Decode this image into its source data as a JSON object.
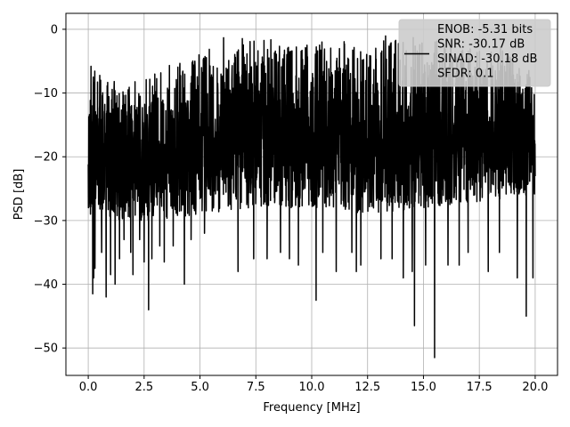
{
  "chart_data": {
    "type": "line",
    "title": "",
    "xlabel": "Frequency [MHz]",
    "ylabel": "PSD [dB]",
    "xlim": [
      -1.0,
      21.0
    ],
    "ylim": [
      -54.3,
      2.5
    ],
    "xticks": [
      0.0,
      2.5,
      5.0,
      7.5,
      10.0,
      12.5,
      15.0,
      17.5,
      20.0
    ],
    "xtick_labels": [
      "0.0",
      "2.5",
      "5.0",
      "7.5",
      "10.0",
      "12.5",
      "15.0",
      "17.5",
      "20.0"
    ],
    "yticks": [
      0,
      -10,
      -20,
      -30,
      -40,
      -50
    ],
    "ytick_labels": [
      "0",
      "−10",
      "−20",
      "−30",
      "−40",
      "−50"
    ],
    "grid": true,
    "legend_placement": "top-right",
    "series": [
      {
        "name": "ENOB: -5.31 bits\nSNR: -30.17 dB\nSINAD: -30.18 dB\nSFDR: 0.1",
        "color": "#000000",
        "description": "Noise-like PSD trace densely filling roughly -28 to -3 dB across 0 to 20 MHz, upper edge near -5 dB, with sharp downward spikes",
        "x_range": [
          0.0,
          20.0
        ],
        "envelope_upper": [
          [
            0.0,
            -10
          ],
          [
            0.1,
            -5
          ],
          [
            1.0,
            -8
          ],
          [
            2.5,
            -7
          ],
          [
            4.0,
            -5
          ],
          [
            5.5,
            -1
          ],
          [
            6.5,
            -1.5
          ],
          [
            7.5,
            -1
          ],
          [
            9.5,
            -2.5
          ],
          [
            11.5,
            -1
          ],
          [
            14.5,
            -1
          ],
          [
            16.0,
            -1
          ],
          [
            18.5,
            -2
          ],
          [
            20.0,
            -6
          ]
        ],
        "envelope_lower": [
          [
            0.0,
            -28
          ],
          [
            1.0,
            -30
          ],
          [
            3.0,
            -30
          ],
          [
            5.0,
            -29
          ],
          [
            7.5,
            -28
          ],
          [
            10.0,
            -28
          ],
          [
            12.5,
            -29
          ],
          [
            15.0,
            -28
          ],
          [
            17.5,
            -27
          ],
          [
            20.0,
            -26
          ]
        ],
        "dips": [
          [
            0.1,
            -29
          ],
          [
            0.2,
            -41.5
          ],
          [
            0.25,
            -39
          ],
          [
            0.3,
            -37.5
          ],
          [
            0.6,
            -35
          ],
          [
            0.8,
            -42
          ],
          [
            1.0,
            -38.5
          ],
          [
            1.2,
            -33
          ],
          [
            1.4,
            -36
          ],
          [
            1.2,
            -40
          ],
          [
            1.6,
            -33
          ],
          [
            1.9,
            -35
          ],
          [
            2.0,
            -38.5
          ],
          [
            2.3,
            -33
          ],
          [
            2.5,
            -36.5
          ],
          [
            2.7,
            -44
          ],
          [
            2.85,
            -36
          ],
          [
            3.2,
            -34
          ],
          [
            3.4,
            -36.5
          ],
          [
            3.8,
            -34
          ],
          [
            4.3,
            -40
          ],
          [
            4.6,
            -33
          ],
          [
            5.2,
            -32
          ],
          [
            6.7,
            -38
          ],
          [
            7.4,
            -36
          ],
          [
            8.0,
            -36
          ],
          [
            8.6,
            -35
          ],
          [
            9.0,
            -36
          ],
          [
            9.4,
            -37
          ],
          [
            10.2,
            -42.5
          ],
          [
            10.5,
            -35
          ],
          [
            11.1,
            -38
          ],
          [
            11.8,
            -35
          ],
          [
            12.0,
            -38
          ],
          [
            12.2,
            -37
          ],
          [
            13.1,
            -36
          ],
          [
            13.6,
            -36
          ],
          [
            14.1,
            -39
          ],
          [
            14.5,
            -38
          ],
          [
            14.6,
            -46.5
          ],
          [
            15.1,
            -37
          ],
          [
            15.5,
            -51.5
          ],
          [
            16.1,
            -37
          ],
          [
            16.6,
            -37
          ],
          [
            17.0,
            -35
          ],
          [
            17.9,
            -38
          ],
          [
            18.4,
            -35
          ],
          [
            19.2,
            -39
          ],
          [
            19.6,
            -45
          ],
          [
            19.9,
            -39
          ]
        ]
      }
    ]
  }
}
